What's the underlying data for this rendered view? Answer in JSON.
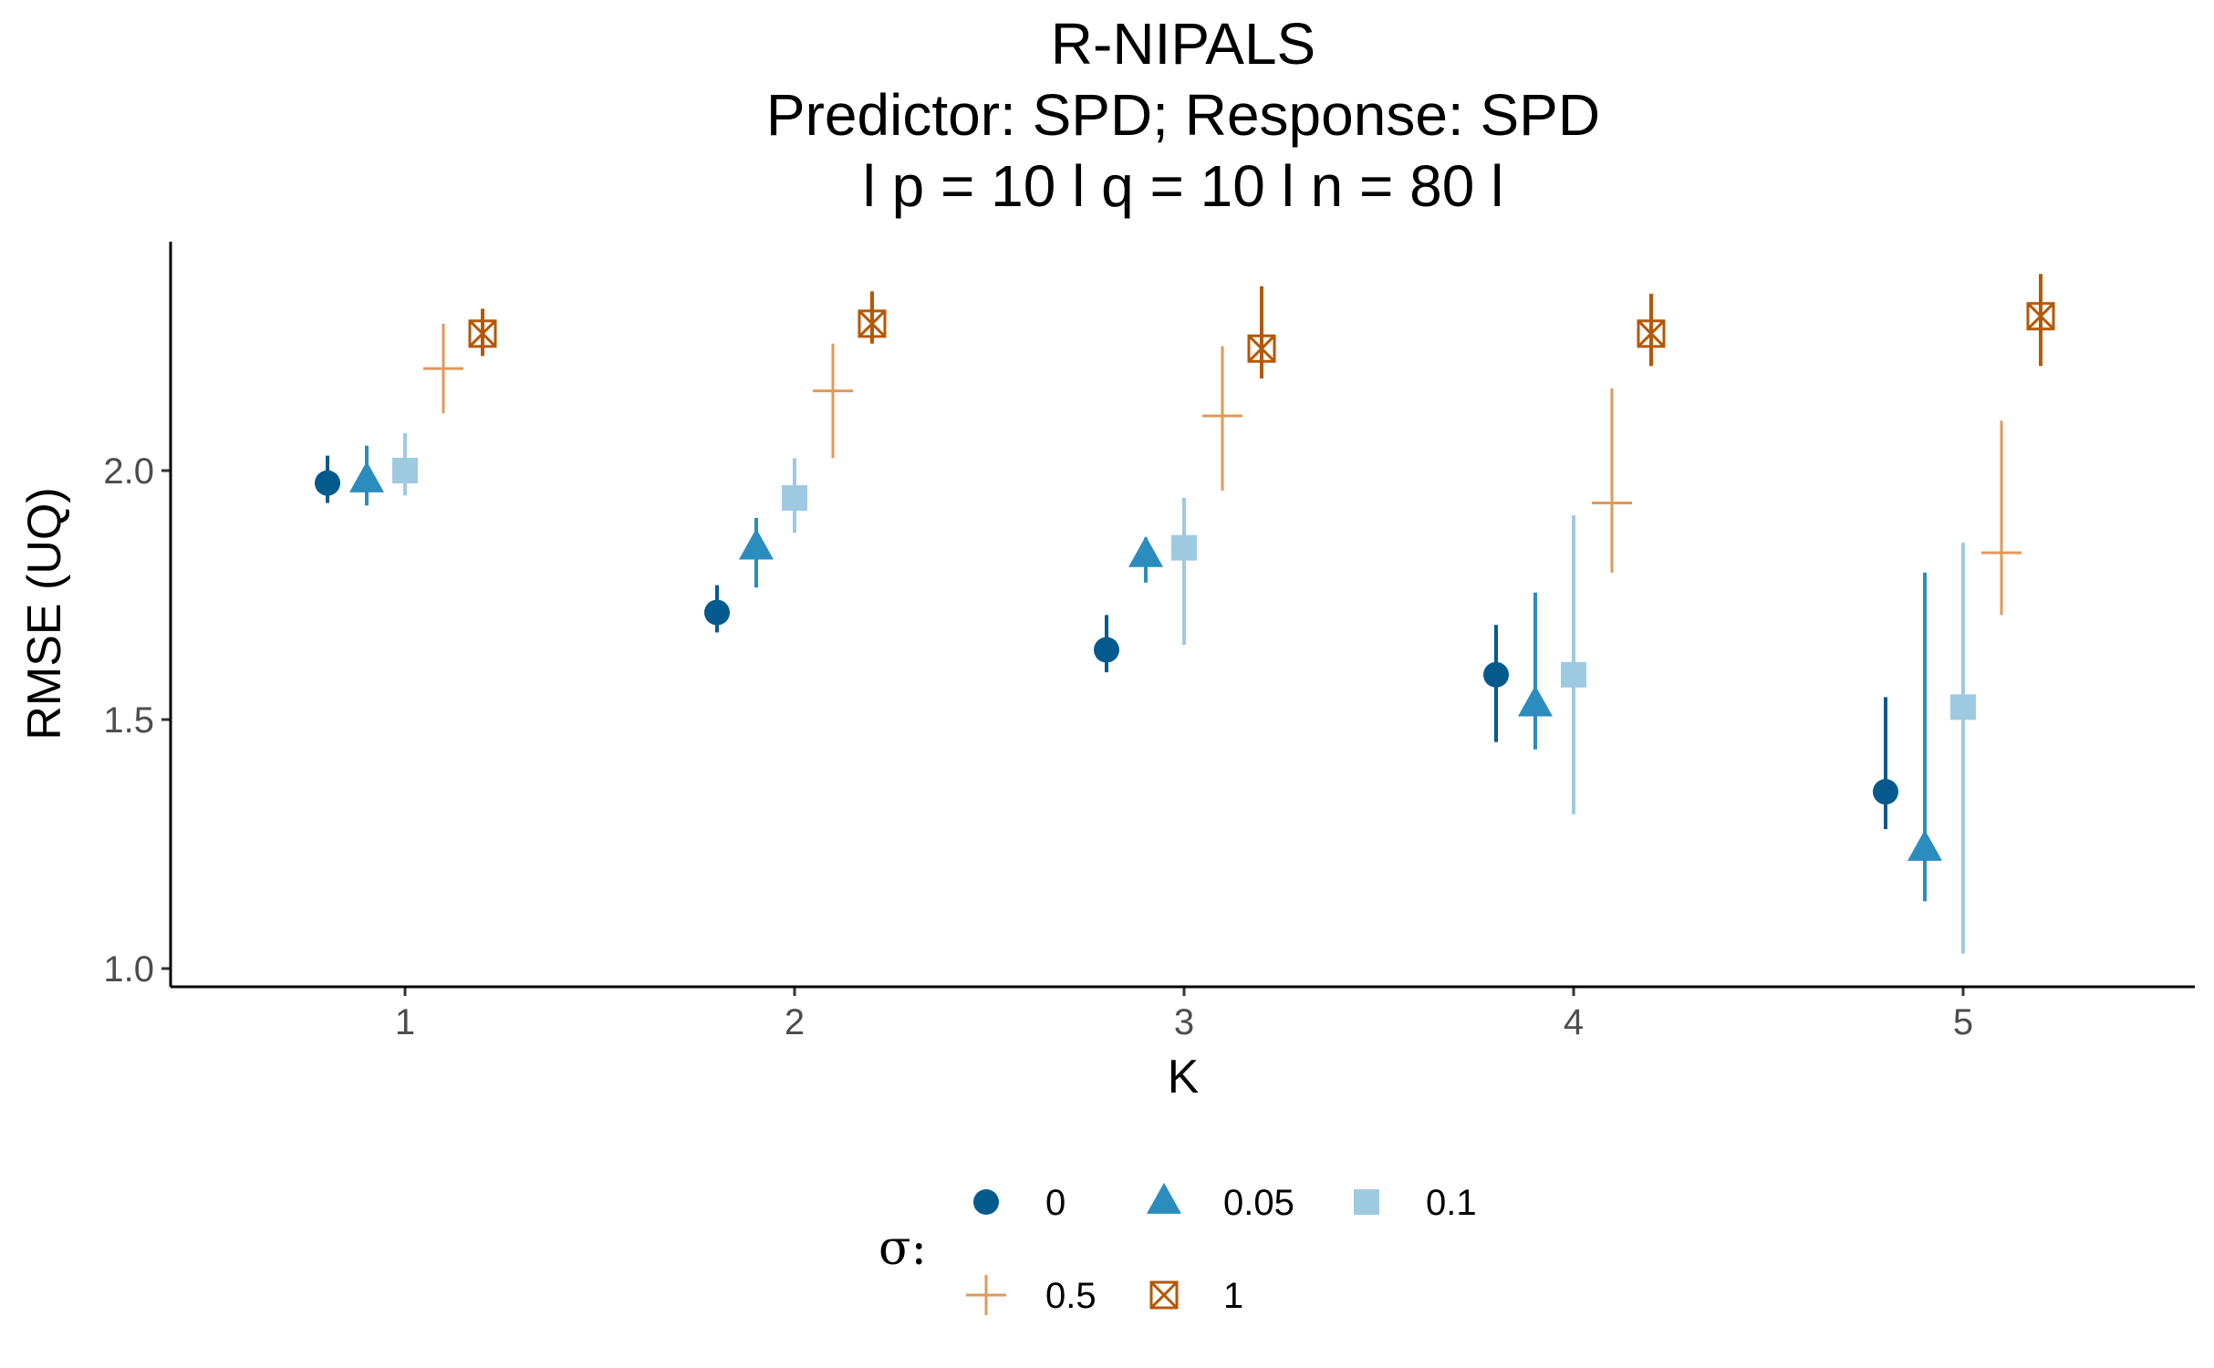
{
  "chart_data": {
    "type": "scatter",
    "title": [
      "R-NIPALS",
      "Predictor: SPD; Response: SPD",
      "l p = 10 l q = 10 l n = 80 l"
    ],
    "xlabel": "K",
    "ylabel": "RMSE (UQ)",
    "x_categories": [
      "1",
      "2",
      "3",
      "4",
      "5"
    ],
    "ylim": [
      0.97,
      2.44
    ],
    "y_ticks": [
      1.0,
      1.5,
      2.0
    ],
    "y_tick_labels": [
      "1.0",
      "1.5",
      "2.0"
    ],
    "grid": false,
    "legend": {
      "title": "σ:",
      "position": "bottom"
    },
    "series": [
      {
        "name": "0",
        "shape": "circle",
        "color": "#045a8d",
        "points": [
          {
            "k": 1,
            "y": 1.975,
            "lo": 1.935,
            "hi": 2.03
          },
          {
            "k": 2,
            "y": 1.715,
            "lo": 1.675,
            "hi": 1.77
          },
          {
            "k": 3,
            "y": 1.64,
            "lo": 1.595,
            "hi": 1.71
          },
          {
            "k": 4,
            "y": 1.59,
            "lo": 1.455,
            "hi": 1.69
          },
          {
            "k": 5,
            "y": 1.355,
            "lo": 1.28,
            "hi": 1.545
          }
        ]
      },
      {
        "name": "0.05",
        "shape": "triangle",
        "color": "#2b8cbe",
        "points": [
          {
            "k": 1,
            "y": 1.98,
            "lo": 1.93,
            "hi": 2.05
          },
          {
            "k": 2,
            "y": 1.845,
            "lo": 1.765,
            "hi": 1.905
          },
          {
            "k": 3,
            "y": 1.83,
            "lo": 1.775,
            "hi": 1.865
          },
          {
            "k": 4,
            "y": 1.53,
            "lo": 1.44,
            "hi": 1.755
          },
          {
            "k": 5,
            "y": 1.24,
            "lo": 1.135,
            "hi": 1.795
          }
        ]
      },
      {
        "name": "0.1",
        "shape": "square",
        "color": "#9ecae1",
        "points": [
          {
            "k": 1,
            "y": 2.0,
            "lo": 1.95,
            "hi": 2.075
          },
          {
            "k": 2,
            "y": 1.945,
            "lo": 1.875,
            "hi": 2.025
          },
          {
            "k": 3,
            "y": 1.845,
            "lo": 1.65,
            "hi": 1.945
          },
          {
            "k": 4,
            "y": 1.59,
            "lo": 1.31,
            "hi": 1.91
          },
          {
            "k": 5,
            "y": 1.525,
            "lo": 1.03,
            "hi": 1.855
          }
        ]
      },
      {
        "name": "0.5",
        "shape": "plus",
        "color": "#e0995a",
        "points": [
          {
            "k": 1,
            "y": 2.205,
            "lo": 2.115,
            "hi": 2.295
          },
          {
            "k": 2,
            "y": 2.16,
            "lo": 2.025,
            "hi": 2.255
          },
          {
            "k": 3,
            "y": 2.11,
            "lo": 1.96,
            "hi": 2.25
          },
          {
            "k": 4,
            "y": 1.935,
            "lo": 1.795,
            "hi": 2.165
          },
          {
            "k": 5,
            "y": 1.835,
            "lo": 1.71,
            "hi": 2.1
          }
        ]
      },
      {
        "name": "1",
        "shape": "square-cross",
        "color": "#b35806",
        "points": [
          {
            "k": 1,
            "y": 2.275,
            "lo": 2.23,
            "hi": 2.325
          },
          {
            "k": 2,
            "y": 2.295,
            "lo": 2.255,
            "hi": 2.36
          },
          {
            "k": 3,
            "y": 2.245,
            "lo": 2.185,
            "hi": 2.37
          },
          {
            "k": 4,
            "y": 2.275,
            "lo": 2.21,
            "hi": 2.355
          },
          {
            "k": 5,
            "y": 2.31,
            "lo": 2.21,
            "hi": 2.395
          }
        ]
      }
    ]
  }
}
